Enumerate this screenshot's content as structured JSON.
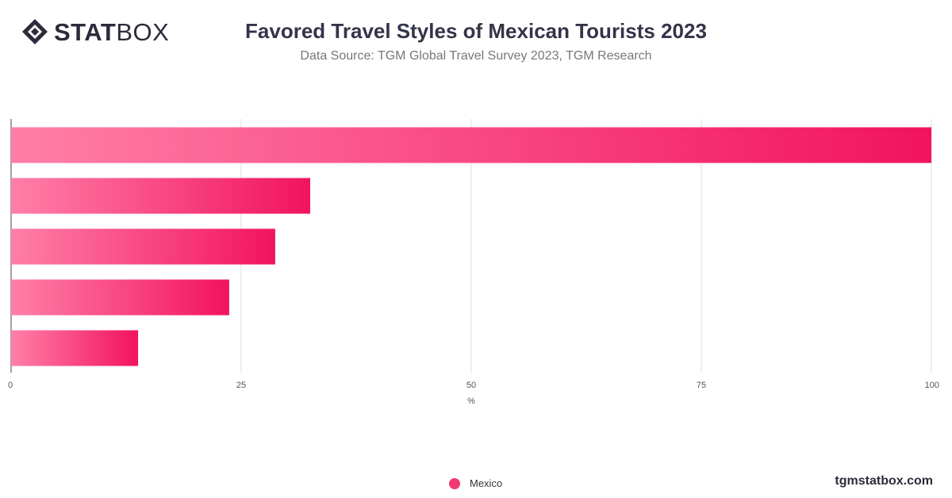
{
  "brand": {
    "logo_bold": "STAT",
    "logo_light": "BOX",
    "footer": "tgmstatbox.com"
  },
  "header": {
    "title": "Favored Travel Styles of Mexican Tourists 2023",
    "subtitle": "Data Source: TGM Global Travel Survey 2023, TGM Research"
  },
  "colors": {
    "bar_start": "#ff7fa8",
    "bar_end": "#f2135f",
    "legend": "#f03a72",
    "grid": "#dddddd",
    "axis": "#444444"
  },
  "chart_data": {
    "type": "bar",
    "orientation": "horizontal",
    "categories": [
      "",
      "",
      "",
      "",
      ""
    ],
    "series": [
      {
        "name": "Mexico",
        "values": [
          100,
          32.5,
          28.7,
          23.7,
          13.8
        ]
      }
    ],
    "xlabel": "%",
    "xlim": [
      0,
      100
    ],
    "xticks": [
      0,
      25,
      50,
      75,
      100
    ],
    "grid": true,
    "legend": "bottom-center"
  }
}
